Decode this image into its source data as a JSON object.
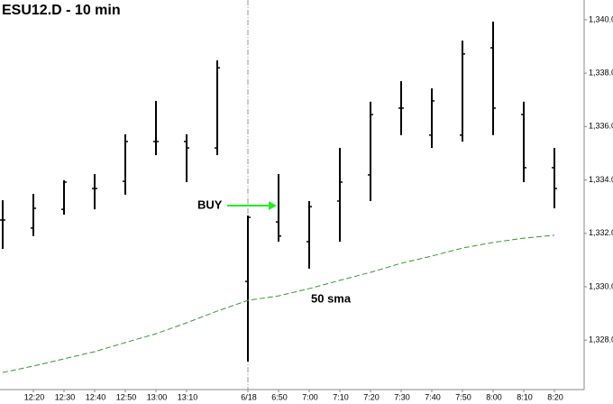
{
  "chart_data": {
    "type": "ohlc",
    "title": "ESU12.D - 10 min",
    "categories": [
      null,
      "12:20",
      "12:30",
      "12:40",
      "12:50",
      "13:00",
      "13:10",
      null,
      "6/18",
      "6:50",
      "7:00",
      "7:10",
      "7:20",
      "7:30",
      "7:40",
      "7:50",
      "8:00",
      "8:10",
      "8:20"
    ],
    "open": [
      1332.5,
      1332.2,
      1332.9,
      1333.68,
      1333.95,
      1335.44,
      1335.44,
      1335.2,
      1330.2,
      1332.43,
      1331.69,
      1333.21,
      1334.19,
      1336.69,
      1335.68,
      1335.68,
      1338.95,
      1336.45,
      1334.46
    ],
    "high": [
      1333.24,
      1333.48,
      1333.99,
      1334.22,
      1335.71,
      1336.96,
      1335.71,
      1338.48,
      1332.67,
      1334.22,
      1333.21,
      1335.2,
      1336.93,
      1337.7,
      1337.43,
      1339.22,
      1339.93,
      1336.93,
      1335.2
    ],
    "low": [
      1331.42,
      1331.9,
      1332.7,
      1332.9,
      1333.45,
      1334.93,
      1333.92,
      1334.93,
      1327.2,
      1331.69,
      1330.68,
      1331.69,
      1333.21,
      1335.68,
      1335.2,
      1335.44,
      1335.68,
      1333.92,
      1332.94
    ],
    "close": [
      1332.5,
      1332.94,
      1333.92,
      1333.68,
      1335.44,
      1335.44,
      1335.2,
      1338.2,
      1332.6,
      1331.9,
      1333.0,
      1333.92,
      1336.45,
      1336.69,
      1336.96,
      1338.72,
      1336.69,
      1334.46,
      1333.68
    ],
    "color": "#000000",
    "sma": {
      "name": "50 sma",
      "color": "#339933",
      "values": [
        1326.79,
        1327.03,
        1327.3,
        1327.57,
        1327.91,
        1328.24,
        1328.65,
        1329.09,
        1329.49,
        1329.66,
        1329.93,
        1330.24,
        1330.54,
        1330.88,
        1331.15,
        1331.45,
        1331.66,
        1331.82,
        1331.93
      ]
    },
    "buy": {
      "label": "BUY",
      "color": "#22ee22",
      "index": 9
    },
    "ylim": [
      1326.15,
      1340.74
    ],
    "yticks": [
      {
        "value": 1328,
        "label": "1,328.00"
      },
      {
        "value": 1330,
        "label": "1,330.00"
      },
      {
        "value": 1332,
        "label": "1,332.00"
      },
      {
        "value": 1334,
        "label": "1,334.00"
      },
      {
        "value": 1336,
        "label": "1,336.00"
      },
      {
        "value": 1338,
        "label": "1,338.00"
      },
      {
        "value": 1340,
        "label": "1,340.00"
      }
    ]
  }
}
